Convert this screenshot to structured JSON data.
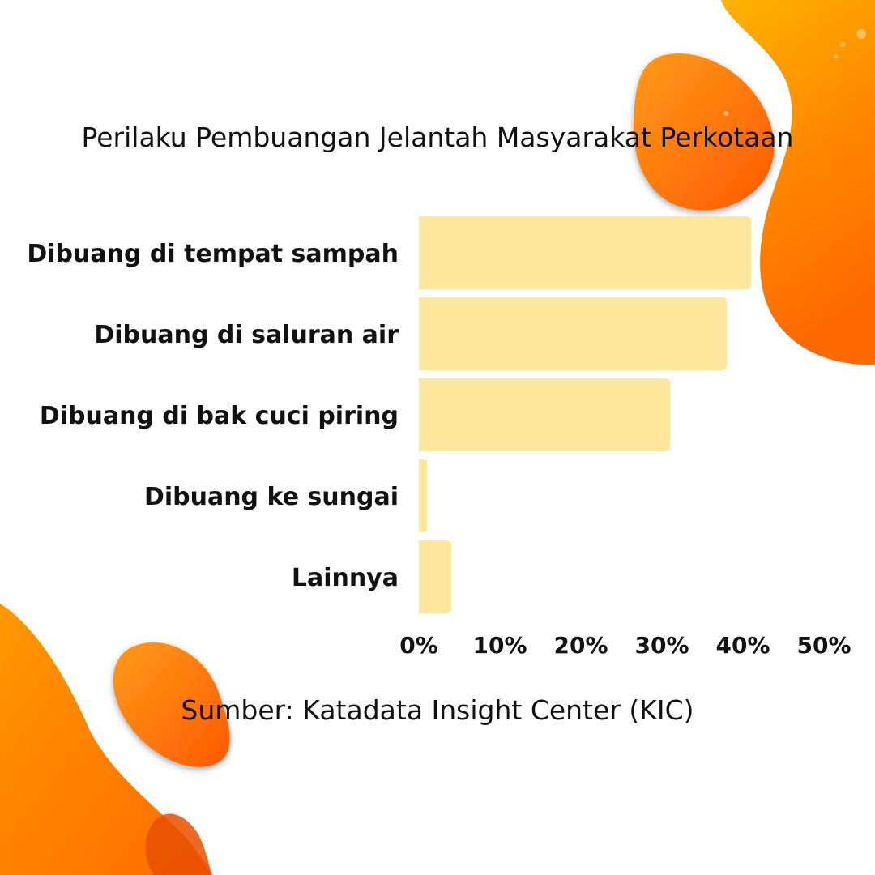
{
  "chart_data": {
    "type": "bar",
    "orientation": "horizontal",
    "title": "Perilaku Pembuangan Jelantah Masyarakat Perkotaan",
    "categories": [
      "Dibuang di tempat sampah",
      "Dibuang di saluran air",
      "Dibuang di bak cuci piring",
      "Dibuang ke sungai",
      "Lainnya"
    ],
    "values": [
      41,
      38,
      31,
      1,
      4
    ],
    "value_unit": "%",
    "xlim": [
      0,
      50
    ],
    "x_ticks": [
      "0%",
      "10%",
      "20%",
      "30%",
      "40%",
      "50%"
    ],
    "xlabel": "",
    "ylabel": "",
    "grid": false,
    "legend": "none",
    "bar_color": "#fce79c",
    "source": "Sumber: Katadata Insight Center (KIC)"
  },
  "colors": {
    "background": "#ffffff",
    "text": "#111111",
    "accent_orange": "#ff7a0a",
    "accent_yellow": "#ffb000"
  }
}
